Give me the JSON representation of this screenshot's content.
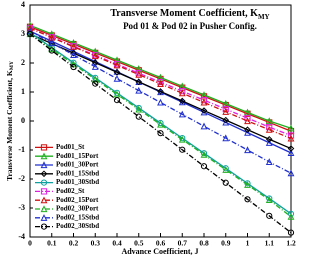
{
  "chart_data": {
    "type": "line",
    "title": {
      "text": "Transverse Moment Coefficient, K",
      "subscript": "MY"
    },
    "subtitle": "Pod 01 & Pod 02 in Pusher Config.",
    "xlabel": "Advance Coefficient, J",
    "ylabel": {
      "text": "Transverse Moment Coefficient, K",
      "subscript": "MY"
    },
    "x": [
      0,
      0.1,
      0.2,
      0.3,
      0.4,
      0.5,
      0.6,
      0.7,
      0.8,
      0.9,
      1,
      1.1,
      1.2
    ],
    "xlim": [
      0,
      1.2
    ],
    "xticks": [
      0,
      0.1,
      0.2,
      0.3,
      0.4,
      0.5,
      0.6,
      0.7,
      0.8,
      0.9,
      1,
      1.1,
      1.2
    ],
    "ylim": [
      -4,
      4
    ],
    "yticks": [
      -4,
      -3,
      -2,
      -1,
      0,
      1,
      2,
      3,
      4
    ],
    "legend": "lower-left",
    "series": [
      {
        "name": "Pod01_St",
        "color": "#d01010",
        "marker": "square",
        "dash": false,
        "values": [
          3.25,
          2.95,
          2.65,
          2.35,
          2.05,
          1.75,
          1.45,
          1.15,
          0.85,
          0.55,
          0.25,
          -0.05,
          -0.35
        ]
      },
      {
        "name": "Pod01_15Port",
        "color": "#20b020",
        "marker": "triangle",
        "dash": false,
        "values": [
          3.3,
          3.0,
          2.7,
          2.4,
          2.1,
          1.8,
          1.5,
          1.2,
          0.9,
          0.6,
          0.3,
          0.0,
          -0.25
        ]
      },
      {
        "name": "Pod01_30Port",
        "color": "#2030d0",
        "marker": "triangle",
        "dash": false,
        "values": [
          3.1,
          2.75,
          2.4,
          2.05,
          1.7,
          1.35,
          1.0,
          0.65,
          0.3,
          -0.05,
          -0.4,
          -0.75,
          -1.1
        ]
      },
      {
        "name": "Pod01_15Stbd",
        "color": "#000000",
        "marker": "diamond",
        "dash": false,
        "values": [
          3.0,
          2.67,
          2.34,
          2.01,
          1.68,
          1.35,
          1.02,
          0.69,
          0.36,
          0.03,
          -0.3,
          -0.63,
          -0.95
        ]
      },
      {
        "name": "Pod01_30Stbd",
        "color": "#10a0a0",
        "marker": "circle",
        "dash": false,
        "values": [
          3.05,
          2.53,
          2.01,
          1.49,
          0.97,
          0.45,
          -0.07,
          -0.59,
          -1.11,
          -1.63,
          -2.15,
          -2.67,
          -3.2
        ]
      },
      {
        "name": "Pod02_St",
        "color": "#e020e0",
        "marker": "square",
        "dash": true,
        "values": [
          3.2,
          2.89,
          2.58,
          2.27,
          1.96,
          1.65,
          1.34,
          1.03,
          0.72,
          0.41,
          0.1,
          -0.21,
          -0.5
        ]
      },
      {
        "name": "Pod02_15Port",
        "color": "#d01010",
        "marker": "triangle",
        "dash": true,
        "values": [
          3.2,
          2.88,
          2.56,
          2.24,
          1.92,
          1.6,
          1.28,
          0.96,
          0.64,
          0.32,
          0.0,
          -0.3,
          -0.6
        ]
      },
      {
        "name": "Pod02_30Port",
        "color": "#20b020",
        "marker": "triangle",
        "dash": true,
        "values": [
          3.0,
          2.48,
          1.96,
          1.44,
          0.92,
          0.4,
          -0.12,
          -0.64,
          -1.16,
          -1.68,
          -2.2,
          -2.72,
          -3.3
        ]
      },
      {
        "name": "Pod02_15Stbd",
        "color": "#2030d0",
        "marker": "triangle",
        "dash": true,
        "values": [
          3.1,
          2.69,
          2.28,
          1.87,
          1.46,
          1.05,
          0.64,
          0.23,
          -0.18,
          -0.59,
          -1.0,
          -1.41,
          -1.8
        ]
      },
      {
        "name": "Pod02_30Stbd",
        "color": "#000000",
        "marker": "circle",
        "dash": true,
        "values": [
          3.0,
          2.43,
          1.86,
          1.29,
          0.72,
          0.15,
          -0.42,
          -0.99,
          -1.56,
          -2.13,
          -2.7,
          -3.27,
          -3.85
        ]
      }
    ]
  }
}
